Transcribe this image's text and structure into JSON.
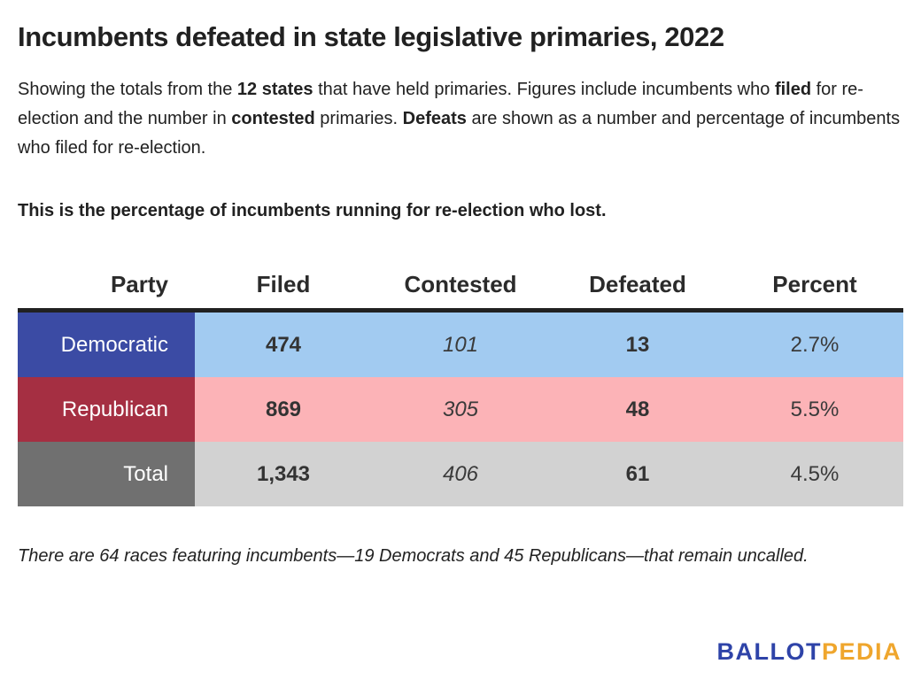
{
  "title": "Incumbents defeated in state legislative primaries, 2022",
  "intro": {
    "parts": [
      "Showing the totals from the ",
      "12 states",
      " that have held primaries. Figures include incumbents who ",
      "filed",
      " for re-election and the number in ",
      "contested",
      " primaries. ",
      "Defeats",
      " are shown as a number and percentage of incumbents who filed for re-election."
    ]
  },
  "highlight_line": "This is the percentage of incumbents running for re-election who lost.",
  "table": {
    "headers": [
      "Party",
      "Filed",
      "Contested",
      "Defeated",
      "Percent"
    ],
    "rows": [
      {
        "party": "Democratic",
        "filed": "474",
        "contested": "101",
        "defeated": "13",
        "percent": "2.7%"
      },
      {
        "party": "Republican",
        "filed": "869",
        "contested": "305",
        "defeated": "48",
        "percent": "5.5%"
      },
      {
        "party": "Total",
        "filed": "1,343",
        "contested": "406",
        "defeated": "61",
        "percent": "4.5%"
      }
    ]
  },
  "footnote": "There are 64 races featuring incumbents—19 Democrats and 45 Republicans—that remain uncalled.",
  "logo": {
    "part1": "BALLOT",
    "part2": "PEDIA"
  },
  "colors": {
    "democratic_label_bg": "#3b4ba4",
    "democratic_row_bg": "#a2cbf1",
    "republican_label_bg": "#a52f42",
    "republican_row_bg": "#fcb3b7",
    "total_label_bg": "#707070",
    "total_row_bg": "#d2d2d2",
    "header_rule": "#212121",
    "logo_blue": "#2e43a8",
    "logo_orange": "#efa62d"
  },
  "chart_data": {
    "type": "table",
    "title": "Incumbents defeated in state legislative primaries, 2022",
    "columns": [
      "Party",
      "Filed",
      "Contested",
      "Defeated",
      "Percent"
    ],
    "rows": [
      [
        "Democratic",
        474,
        101,
        13,
        "2.7%"
      ],
      [
        "Republican",
        869,
        305,
        48,
        "5.5%"
      ],
      [
        "Total",
        1343,
        406,
        61,
        "4.5%"
      ]
    ],
    "notes": [
      "Totals from the 12 states that have held primaries",
      "64 uncalled races featuring incumbents: 19 Democrats and 45 Republicans"
    ]
  }
}
